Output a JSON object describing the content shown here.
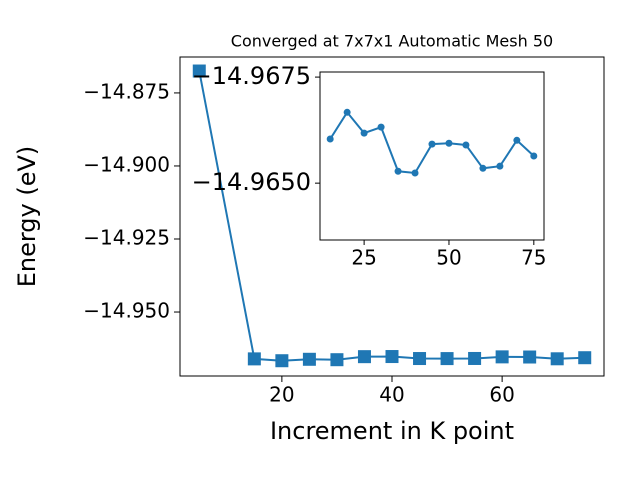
{
  "chart_data": [
    {
      "type": "line",
      "title": "Converged at 7x7x1 Automatic Mesh 50",
      "xlabel": "Increment in K point",
      "ylabel": "Energy (eV)",
      "x": [
        5,
        15,
        20,
        25,
        30,
        35,
        40,
        45,
        50,
        55,
        60,
        65,
        70,
        75
      ],
      "series": [
        {
          "color": "#1f77b4",
          "marker": "square",
          "values": [
            -14.8675,
            -14.96604,
            -14.96667,
            -14.96618,
            -14.96632,
            -14.96528,
            -14.96524,
            -14.96592,
            -14.96594,
            -14.9659,
            -14.96535,
            -14.9654,
            -14.96601,
            -14.96564
          ]
        }
      ],
      "xlim": [
        1.5,
        78.5
      ],
      "xticks": [
        20,
        40,
        60
      ],
      "ylim": [
        -14.9719,
        -14.8627
      ],
      "yticks": [
        {
          "value": -14.95,
          "label": "−14.950"
        },
        {
          "value": -14.925,
          "label": "−14.925"
        },
        {
          "value": -14.9,
          "label": "−14.900"
        },
        {
          "value": -14.875,
          "label": "−14.875"
        }
      ]
    },
    {
      "type": "line",
      "x": [
        15,
        20,
        25,
        30,
        35,
        40,
        45,
        50,
        55,
        60,
        65,
        70,
        75
      ],
      "series": [
        {
          "color": "#1f77b4",
          "marker": "circle",
          "values": [
            -14.96604,
            -14.96667,
            -14.96618,
            -14.96632,
            -14.96528,
            -14.96524,
            -14.96592,
            -14.96594,
            -14.9659,
            -14.96535,
            -14.9654,
            -14.96601,
            -14.96564
          ]
        }
      ],
      "xlim": [
        12,
        78
      ],
      "xticks": [
        25,
        50,
        75
      ],
      "ylim": [
        -14.96366,
        -14.96762
      ],
      "yticks": [
        {
          "value": -14.965,
          "label": "−14.9650"
        },
        {
          "value": -14.9675,
          "label": "−14.9675"
        }
      ]
    }
  ]
}
